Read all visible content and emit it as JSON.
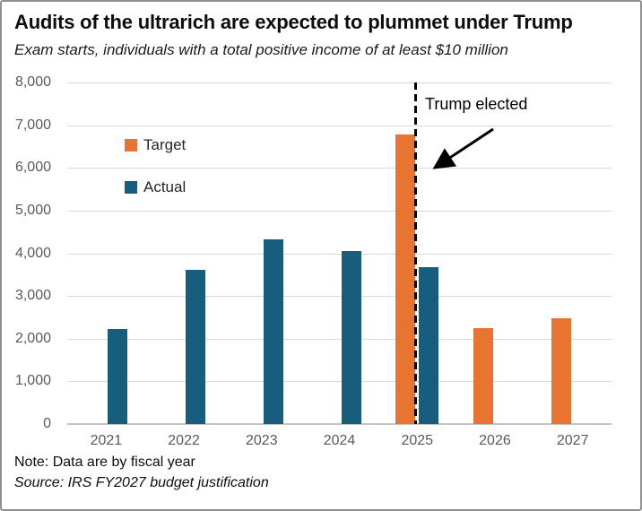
{
  "title": "Audits of the ultrarich are expected to plummet under Trump",
  "subtitle": "Exam starts, individuals with a total positive income of at least $10 million",
  "annotation": {
    "label": "Trump elected"
  },
  "legend": [
    {
      "label": "Target",
      "color": "#e87431"
    },
    {
      "label": "Actual",
      "color": "#175e7e"
    }
  ],
  "notes": {
    "note": "Note: Data are by fiscal year",
    "source": "Source: IRS FY2027 budget justification"
  },
  "chart_data": {
    "type": "bar",
    "title": "Audits of the ultrarich are expected to plummet under Trump",
    "subtitle": "Exam starts, individuals with a total positive income of at least $10 million",
    "categories": [
      "2021",
      "2022",
      "2023",
      "2024",
      "2025",
      "2026",
      "2027"
    ],
    "series": [
      {
        "name": "Target",
        "color": "#e87431",
        "values": [
          null,
          null,
          null,
          null,
          6790,
          2250,
          2480
        ]
      },
      {
        "name": "Actual",
        "color": "#175e7e",
        "values": [
          2230,
          3610,
          4330,
          4060,
          3680,
          null,
          null
        ]
      }
    ],
    "ylim": [
      0,
      8000
    ],
    "yticks": [
      0,
      1000,
      2000,
      3000,
      4000,
      5000,
      6000,
      7000,
      8000
    ],
    "grid": true,
    "legend_position": "upper-left-inside",
    "annotation": {
      "text": "Trump elected",
      "marker": "dashed vertical line between 2025 target and actual bars"
    },
    "colors": {
      "gridline": "#d9d9d9",
      "axis_text": "#595959",
      "dash_line": "#000000"
    }
  }
}
